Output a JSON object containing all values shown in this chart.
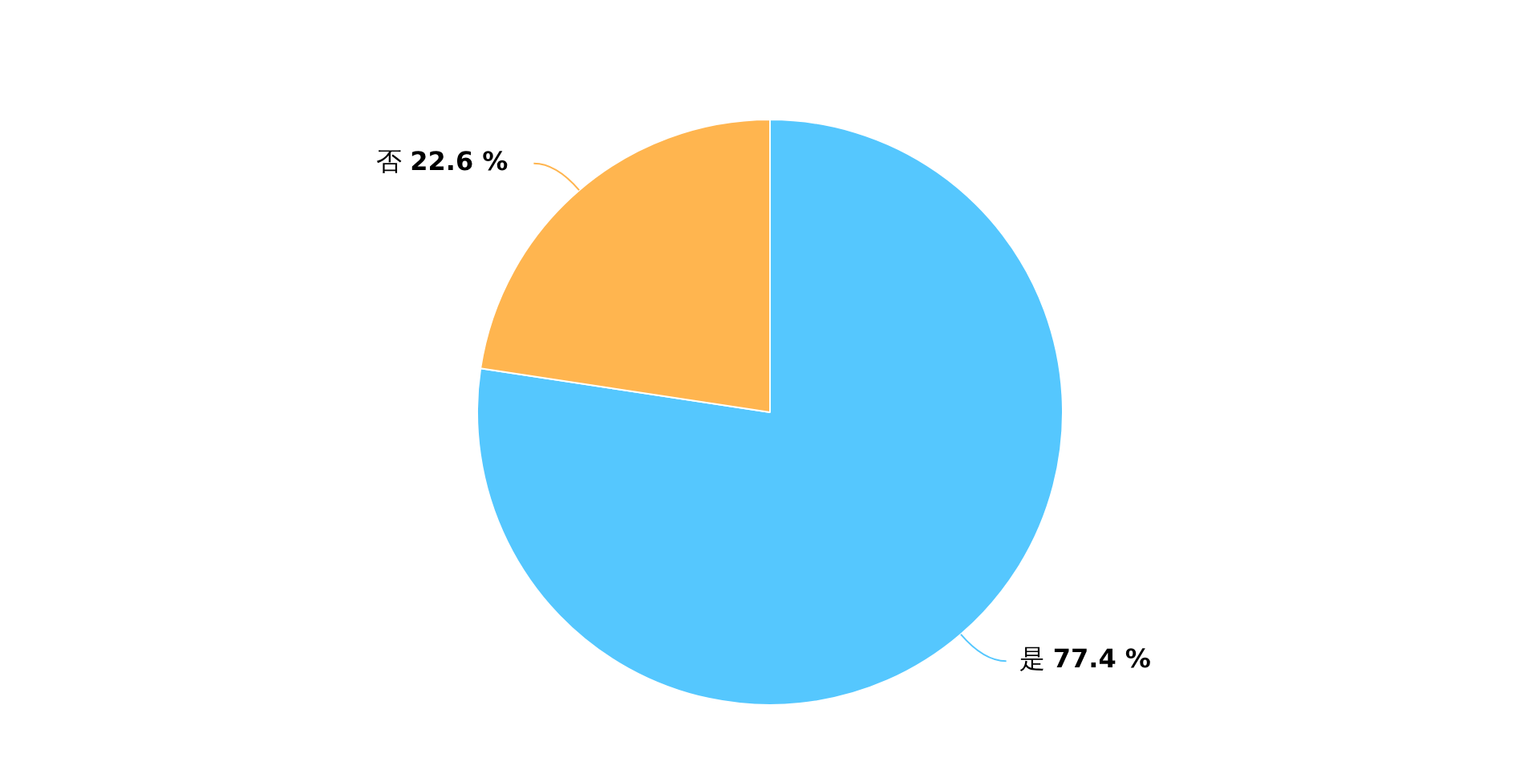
{
  "chart_data": {
    "type": "pie",
    "categories": [
      "是",
      "否"
    ],
    "values": [
      77.4,
      22.6
    ],
    "colors": [
      "#55c7fe",
      "#ffb54f"
    ],
    "value_labels": [
      "77.4 %",
      "22.6 %"
    ],
    "legend": false
  }
}
